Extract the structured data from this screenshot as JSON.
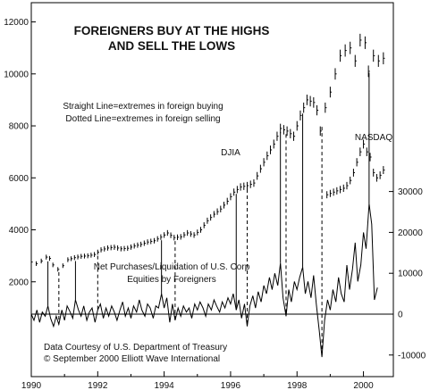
{
  "chart_data": {
    "type": "line",
    "title_lines": [
      "FOREIGNERS BUY AT THE HIGHS",
      "AND SELL THE LOWS"
    ],
    "annotations": {
      "legend_lines": [
        "Straight Line=extremes in foreign buying",
        "Dotted Line=extremes in foreign selling"
      ],
      "djia_label": "DJIA",
      "nasdaq_label": "NASDAQ",
      "net_label_lines": [
        "Net Purchases/Liquidation of U.S. Corp",
        "Equities by Foreigners"
      ],
      "source_lines": [
        "Data Courtesy of U.S. Department of Treasury",
        "© September 2000 Elliott Wave International"
      ]
    },
    "x_axis": {
      "range": [
        1990,
        2000.9
      ],
      "tick_labels": [
        "1990",
        "1992",
        "1994",
        "1996",
        "1998",
        "2000"
      ]
    },
    "y_left": {
      "range": [
        0,
        12500
      ],
      "ticks": [
        2000,
        4000,
        6000,
        8000,
        10000,
        12000
      ]
    },
    "y_right": {
      "range": [
        -10000,
        35000
      ],
      "ticks": [
        -10000,
        0,
        10000,
        20000,
        30000
      ],
      "tick_labels": [
        "-10000",
        "0",
        "10000",
        "20000",
        "30000"
      ]
    },
    "series": [
      {
        "name": "DJIA",
        "style": "hlc-bars",
        "points": [
          [
            1990.0,
            2760
          ],
          [
            1990.15,
            2700
          ],
          [
            1990.3,
            2800
          ],
          [
            1990.45,
            2950
          ],
          [
            1990.55,
            2900
          ],
          [
            1990.65,
            2650
          ],
          [
            1990.8,
            2480
          ],
          [
            1990.95,
            2620
          ],
          [
            1991.1,
            2850
          ],
          [
            1991.3,
            2930
          ],
          [
            1991.5,
            2980
          ],
          [
            1991.7,
            3000
          ],
          [
            1991.9,
            3050
          ],
          [
            1992.1,
            3230
          ],
          [
            1992.3,
            3300
          ],
          [
            1992.5,
            3330
          ],
          [
            1992.7,
            3270
          ],
          [
            1992.9,
            3290
          ],
          [
            1993.1,
            3380
          ],
          [
            1993.3,
            3440
          ],
          [
            1993.5,
            3530
          ],
          [
            1993.7,
            3580
          ],
          [
            1993.9,
            3720
          ],
          [
            1994.1,
            3880
          ],
          [
            1994.3,
            3700
          ],
          [
            1994.5,
            3730
          ],
          [
            1994.7,
            3880
          ],
          [
            1994.9,
            3800
          ],
          [
            1995.1,
            4000
          ],
          [
            1995.3,
            4350
          ],
          [
            1995.5,
            4600
          ],
          [
            1995.7,
            4800
          ],
          [
            1995.9,
            5100
          ],
          [
            1996.1,
            5450
          ],
          [
            1996.3,
            5650
          ],
          [
            1996.5,
            5700
          ],
          [
            1996.7,
            5800
          ],
          [
            1996.9,
            6350
          ],
          [
            1997.1,
            6850
          ],
          [
            1997.3,
            7300
          ],
          [
            1997.5,
            7900
          ],
          [
            1997.7,
            7800
          ],
          [
            1997.9,
            7600
          ],
          [
            1998.1,
            8400
          ],
          [
            1998.3,
            9000
          ],
          [
            1998.5,
            8900
          ],
          [
            1998.6,
            8600
          ],
          [
            1998.7,
            7800
          ],
          [
            1998.85,
            8700
          ],
          [
            1999.0,
            9300
          ],
          [
            1999.15,
            10000
          ],
          [
            1999.3,
            10700
          ],
          [
            1999.45,
            10900
          ],
          [
            1999.6,
            11000
          ],
          [
            1999.75,
            10500
          ],
          [
            1999.9,
            11300
          ],
          [
            2000.05,
            11200
          ],
          [
            2000.15,
            10100
          ],
          [
            2000.3,
            10700
          ],
          [
            2000.45,
            10500
          ],
          [
            2000.6,
            10600
          ],
          [
            2000.75,
            11000
          ]
        ]
      },
      {
        "name": "NASDAQ",
        "style": "hlc-bars",
        "points": [
          [
            1998.9,
            5350
          ],
          [
            1999.0,
            5400
          ],
          [
            1999.1,
            5450
          ],
          [
            1999.2,
            5500
          ],
          [
            1999.3,
            5550
          ],
          [
            1999.4,
            5600
          ],
          [
            1999.5,
            5700
          ],
          [
            1999.6,
            5900
          ],
          [
            1999.7,
            6200
          ],
          [
            1999.8,
            6600
          ],
          [
            1999.9,
            7000
          ],
          [
            2000.0,
            7300
          ],
          [
            2000.1,
            7000
          ],
          [
            2000.2,
            6800
          ],
          [
            2000.3,
            6200
          ],
          [
            2000.4,
            6000
          ],
          [
            2000.5,
            6100
          ],
          [
            2000.6,
            6300
          ],
          [
            2000.7,
            6400
          ]
        ]
      },
      {
        "name": "Net Purchases/Liquidation of U.S. Corp Equities by Foreigners",
        "style": "line",
        "axis": "right",
        "points": [
          [
            1990.0,
            0
          ],
          [
            1990.08,
            -1500
          ],
          [
            1990.17,
            1000
          ],
          [
            1990.25,
            -2000
          ],
          [
            1990.33,
            500
          ],
          [
            1990.42,
            -500
          ],
          [
            1990.5,
            2000
          ],
          [
            1990.58,
            -1000
          ],
          [
            1990.67,
            -3000
          ],
          [
            1990.75,
            -500
          ],
          [
            1990.83,
            -2500
          ],
          [
            1990.92,
            1000
          ],
          [
            1991.0,
            -1500
          ],
          [
            1991.08,
            2000
          ],
          [
            1991.17,
            500
          ],
          [
            1991.25,
            -1000
          ],
          [
            1991.33,
            3500
          ],
          [
            1991.42,
            1000
          ],
          [
            1991.5,
            -500
          ],
          [
            1991.58,
            2000
          ],
          [
            1991.67,
            -1500
          ],
          [
            1991.75,
            500
          ],
          [
            1991.83,
            1500
          ],
          [
            1991.92,
            -2000
          ],
          [
            1992.0,
            1000
          ],
          [
            1992.08,
            2500
          ],
          [
            1992.17,
            -1000
          ],
          [
            1992.25,
            1500
          ],
          [
            1992.33,
            -500
          ],
          [
            1992.42,
            2000
          ],
          [
            1992.5,
            500
          ],
          [
            1992.58,
            -1500
          ],
          [
            1992.67,
            1000
          ],
          [
            1992.75,
            3000
          ],
          [
            1992.83,
            -500
          ],
          [
            1992.92,
            1500
          ],
          [
            1993.0,
            -1000
          ],
          [
            1993.08,
            2000
          ],
          [
            1993.17,
            500
          ],
          [
            1993.25,
            3500
          ],
          [
            1993.33,
            1000
          ],
          [
            1993.42,
            -500
          ],
          [
            1993.5,
            2500
          ],
          [
            1993.58,
            1500
          ],
          [
            1993.67,
            -1000
          ],
          [
            1993.75,
            2000
          ],
          [
            1993.83,
            1500
          ],
          [
            1993.92,
            5000
          ],
          [
            1994.0,
            1500
          ],
          [
            1994.08,
            4000
          ],
          [
            1994.17,
            -2000
          ],
          [
            1994.25,
            2500
          ],
          [
            1994.33,
            -1500
          ],
          [
            1994.42,
            1500
          ],
          [
            1994.5,
            -500
          ],
          [
            1994.58,
            2000
          ],
          [
            1994.67,
            500
          ],
          [
            1994.75,
            1500
          ],
          [
            1994.83,
            -1000
          ],
          [
            1994.92,
            2500
          ],
          [
            1995.0,
            1000
          ],
          [
            1995.08,
            3000
          ],
          [
            1995.17,
            1500
          ],
          [
            1995.25,
            -500
          ],
          [
            1995.33,
            2500
          ],
          [
            1995.42,
            1000
          ],
          [
            1995.5,
            3500
          ],
          [
            1995.58,
            2000
          ],
          [
            1995.67,
            500
          ],
          [
            1995.75,
            3000
          ],
          [
            1995.83,
            1500
          ],
          [
            1995.92,
            4000
          ],
          [
            1996.0,
            2500
          ],
          [
            1996.08,
            5000
          ],
          [
            1996.17,
            1000
          ],
          [
            1996.25,
            3500
          ],
          [
            1996.33,
            -1000
          ],
          [
            1996.42,
            2500
          ],
          [
            1996.5,
            -3000
          ],
          [
            1996.58,
            2000
          ],
          [
            1996.67,
            4500
          ],
          [
            1996.75,
            1500
          ],
          [
            1996.83,
            5500
          ],
          [
            1996.92,
            3000
          ],
          [
            1997.0,
            7000
          ],
          [
            1997.08,
            5000
          ],
          [
            1997.17,
            9000
          ],
          [
            1997.25,
            6000
          ],
          [
            1997.33,
            10000
          ],
          [
            1997.42,
            7000
          ],
          [
            1997.5,
            12500
          ],
          [
            1997.58,
            4000
          ],
          [
            1997.67,
            -500
          ],
          [
            1997.75,
            6000
          ],
          [
            1997.83,
            3000
          ],
          [
            1997.92,
            8000
          ],
          [
            1998.0,
            6000
          ],
          [
            1998.08,
            9000
          ],
          [
            1998.17,
            11500
          ],
          [
            1998.25,
            5000
          ],
          [
            1998.33,
            8000
          ],
          [
            1998.42,
            4000
          ],
          [
            1998.5,
            9500
          ],
          [
            1998.58,
            2500
          ],
          [
            1998.67,
            -4000
          ],
          [
            1998.75,
            -10500
          ],
          [
            1998.83,
            -1500
          ],
          [
            1998.92,
            3500
          ],
          [
            1999.0,
            1000
          ],
          [
            1999.08,
            6000
          ],
          [
            1999.17,
            3000
          ],
          [
            1999.25,
            9000
          ],
          [
            1999.33,
            5000
          ],
          [
            1999.42,
            3000
          ],
          [
            1999.5,
            12000
          ],
          [
            1999.58,
            6000
          ],
          [
            1999.67,
            11000
          ],
          [
            1999.75,
            17500
          ],
          [
            1999.83,
            8000
          ],
          [
            1999.92,
            12000
          ],
          [
            2000.0,
            20000
          ],
          [
            2000.08,
            16000
          ],
          [
            2000.17,
            27000
          ],
          [
            2000.25,
            22000
          ],
          [
            2000.33,
            3500
          ],
          [
            2000.42,
            6500
          ]
        ]
      }
    ],
    "extreme_buying_x": [
      1990.5,
      1991.33,
      1993.92,
      1996.17,
      1997.5,
      1998.17,
      2000.17
    ],
    "extreme_selling_x": [
      1990.83,
      1992.0,
      1994.33,
      1996.5,
      1997.67,
      1998.75
    ]
  }
}
